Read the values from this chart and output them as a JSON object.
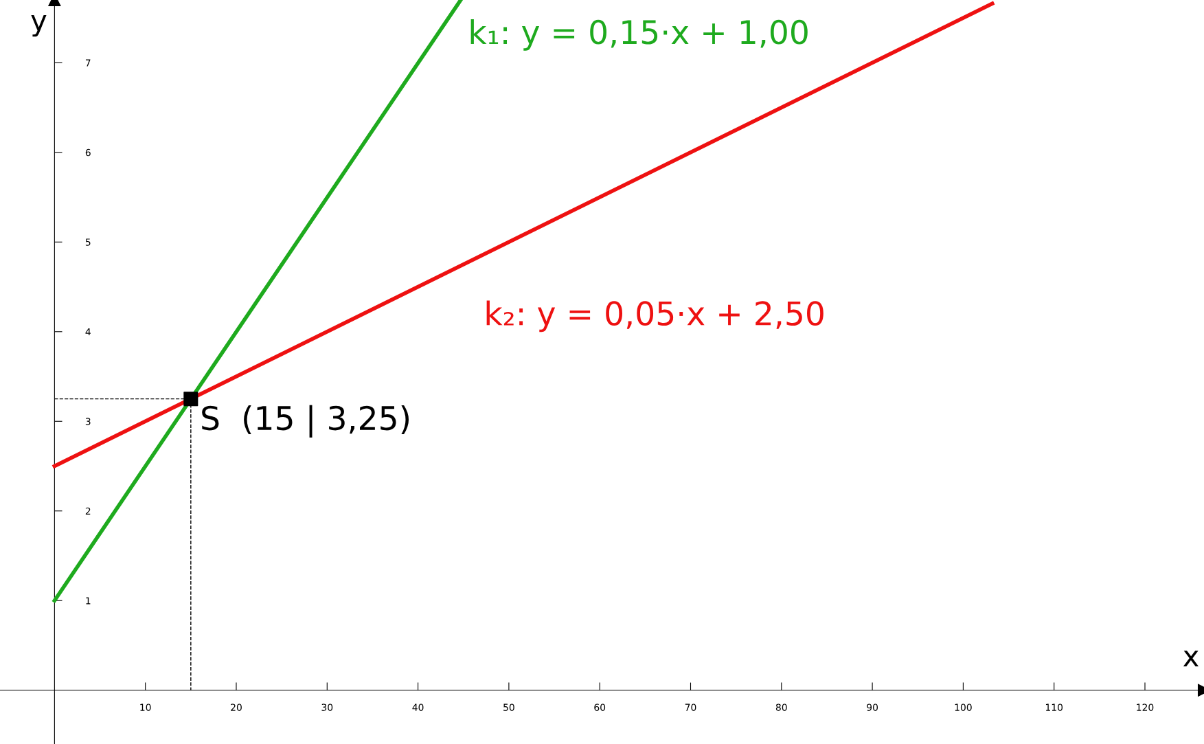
{
  "chart_data": {
    "type": "line",
    "xlabel": "x",
    "ylabel": "y",
    "xlim": [
      -6,
      126.5
    ],
    "ylim": [
      -0.6,
      7.7
    ],
    "xticks": [
      10,
      20,
      30,
      40,
      50,
      60,
      70,
      80,
      90,
      100,
      110,
      120
    ],
    "yticks": [
      1,
      2,
      3,
      4,
      5,
      6,
      7
    ],
    "grid": false,
    "series": [
      {
        "name": "k₁: y = 0,15·x + 1,00",
        "color": "#1eaa1e",
        "x": [
          0,
          44.7
        ],
        "values": [
          1,
          7.7
        ],
        "line_style": "solid"
      },
      {
        "name": "k₂: y = 0,05·x + 2,50",
        "color": "#ee1111",
        "x": [
          0,
          103.2
        ],
        "values": [
          2.5,
          7.66
        ],
        "line_style": "solid"
      },
      {
        "color": "#000000",
        "x": [
          0,
          15,
          15
        ],
        "values": [
          3.25,
          3.25,
          0
        ],
        "line_style": "dashed"
      },
      {
        "type": "scatter",
        "color": "#000000",
        "x": [
          15
        ],
        "values": [
          3.25
        ],
        "marker": "square"
      }
    ],
    "annotations": [
      "S  (15 | 3,25)"
    ]
  }
}
